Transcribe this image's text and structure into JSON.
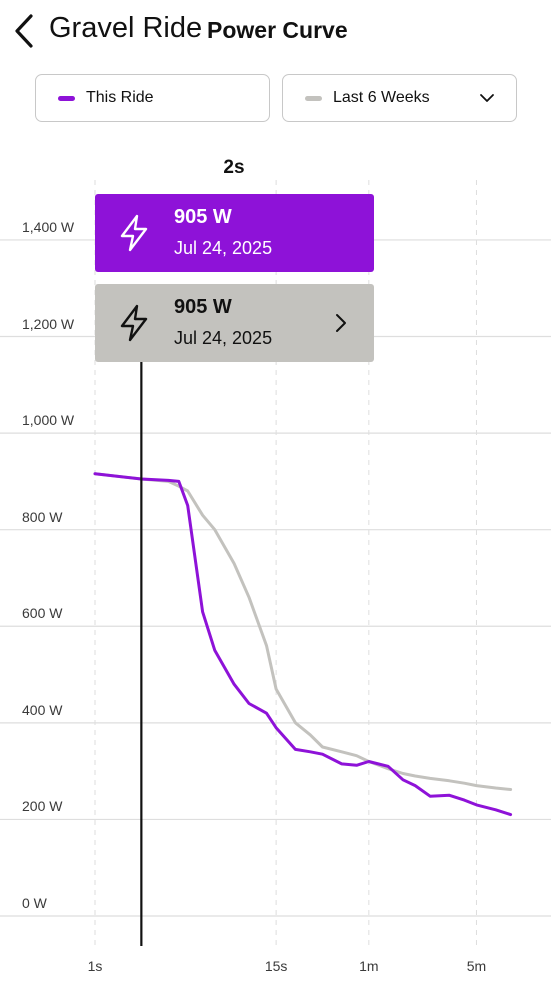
{
  "header": {
    "title": "Gravel Ride",
    "subtitle": "Power Curve"
  },
  "filters": {
    "ride_label": "This Ride",
    "period_label": "Last 6 Weeks"
  },
  "colors": {
    "this_ride": "#8e12d8",
    "last_6_weeks": "#c3c2be",
    "grid": "#dedede",
    "cursor": "#111111"
  },
  "icons": {
    "back": "chevron-left-icon",
    "dropdown": "chevron-down-icon",
    "power": "lightning-bolt-icon",
    "detail": "chevron-right-icon"
  },
  "cursor": {
    "label": "2s",
    "ride_card": {
      "value": "905 W",
      "date": "Jul 24, 2025"
    },
    "period_card": {
      "value": "905 W",
      "date": "Jul 24, 2025"
    }
  },
  "chart_data": {
    "type": "line",
    "title": "Power Curve",
    "x_scale": "log",
    "x_unit": "seconds",
    "y_unit": "W",
    "ylim": [
      0,
      1400
    ],
    "y_ticks": [
      0,
      200,
      400,
      600,
      800,
      1000,
      1200,
      1400
    ],
    "y_tick_labels": [
      "0 W",
      "200 W",
      "400 W",
      "600 W",
      "800 W",
      "1,000 W",
      "1,200 W",
      "1,400 W"
    ],
    "x_ticks": [
      1,
      15,
      60,
      300
    ],
    "x_tick_labels": [
      "1s",
      "15s",
      "1m",
      "5m"
    ],
    "grid": true,
    "series": [
      {
        "name": "This Ride",
        "x": [
          1,
          2,
          3,
          3.5,
          4,
          5,
          6,
          8,
          10,
          13,
          15,
          20,
          25,
          30,
          40,
          50,
          60,
          80,
          100,
          120,
          150,
          200,
          250,
          300,
          400,
          500
        ],
        "y": [
          916,
          905,
          902,
          900,
          850,
          630,
          550,
          480,
          440,
          420,
          390,
          345,
          340,
          335,
          315,
          312,
          320,
          310,
          282,
          270,
          248,
          250,
          240,
          230,
          220,
          210
        ],
        "color": "#8e12d8"
      },
      {
        "name": "Last 6 Weeks",
        "x": [
          1,
          2,
          3,
          3.5,
          4,
          5,
          6,
          8,
          10,
          13,
          15,
          20,
          25,
          30,
          40,
          50,
          60,
          80,
          100,
          120,
          150,
          200,
          250,
          300,
          400,
          500
        ],
        "y": [
          916,
          905,
          900,
          890,
          880,
          830,
          800,
          730,
          660,
          560,
          470,
          400,
          375,
          350,
          340,
          332,
          320,
          305,
          295,
          290,
          285,
          280,
          275,
          270,
          265,
          262
        ],
        "color": "#c3c2be"
      }
    ],
    "cursor_x": 2
  }
}
